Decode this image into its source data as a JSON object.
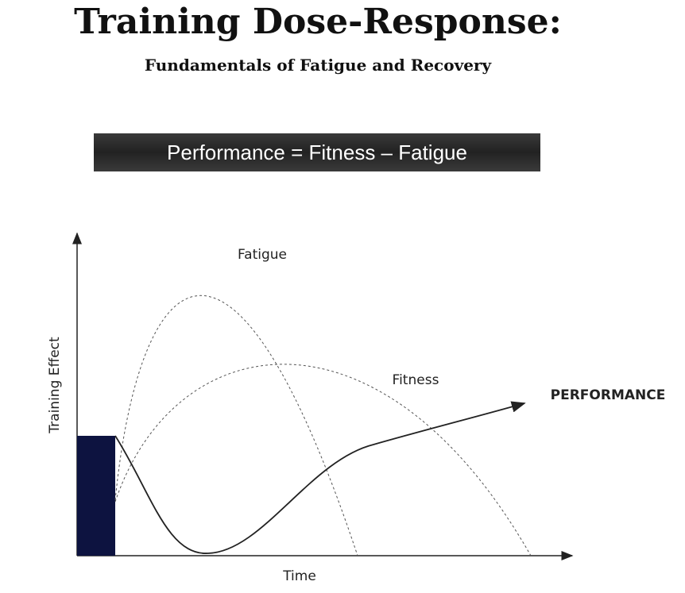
{
  "header": {
    "title": "Training Dose-Response:",
    "subtitle": "Fundamentals of Fatigue and Recovery"
  },
  "banner": {
    "text": "Performance = Fitness – Fatigue"
  },
  "diagram": {
    "y_axis_label": "Training Effect",
    "x_axis_label": "Time",
    "curves": [
      {
        "label": "Fatigue"
      },
      {
        "label": "Fitness"
      },
      {
        "label": "PERFORMANCE"
      }
    ]
  }
}
